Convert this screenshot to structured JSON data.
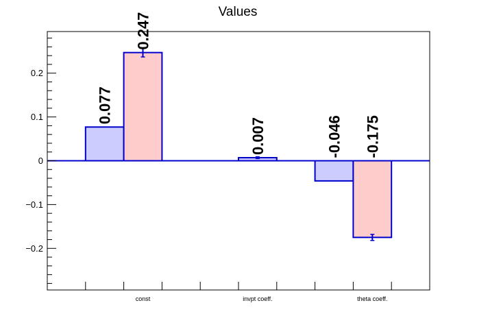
{
  "chart_data": {
    "type": "bar",
    "title": "Values",
    "xlabel": "",
    "ylabel": "",
    "categories": [
      "const",
      "invpt coeff.",
      "theta coeff."
    ],
    "bar_slots": 10,
    "bars": [
      {
        "slot": 1,
        "value": 0.077,
        "label": "0.077",
        "error": 0,
        "fill": "#ccccff"
      },
      {
        "slot": 2,
        "value": 0.247,
        "label": "0.247",
        "error": 0.01,
        "fill": "#ffcccc"
      },
      {
        "slot": 5,
        "value": 0.007,
        "label": "0.007",
        "error": 0.002,
        "fill": "#ccccff"
      },
      {
        "slot": 7,
        "value": -0.046,
        "label": "-0.046",
        "error": 0,
        "fill": "#ccccff"
      },
      {
        "slot": 8,
        "value": -0.175,
        "label": "-0.175",
        "error": 0.007,
        "fill": "#ffcccc"
      }
    ],
    "category_slots": [
      2.5,
      5.5,
      8.5
    ],
    "ylim": [
      -0.295,
      0.295
    ],
    "yticks_major": [
      -0.2,
      -0.1,
      0,
      0.1,
      0.2
    ],
    "ytick_labels": [
      "−0.2",
      "−0.1",
      "0",
      "0.1",
      "0.2"
    ],
    "grid": false,
    "colors": {
      "outline": "#0000cc",
      "axis": "#000000",
      "zero_line": "#0000cc"
    }
  }
}
